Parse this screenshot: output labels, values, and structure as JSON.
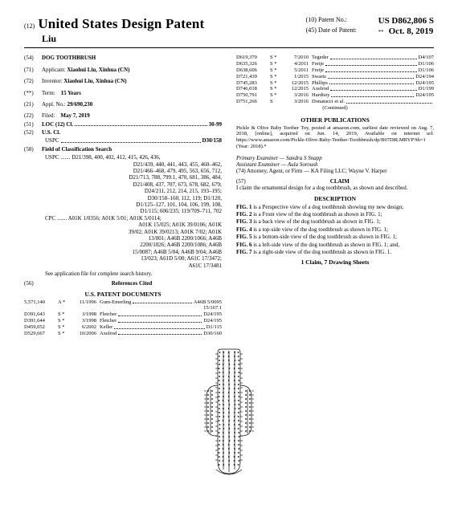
{
  "header": {
    "code12": "(12)",
    "title": "United States Design Patent",
    "surname": "Liu",
    "patno_label": "(10) Patent No.:",
    "patno": "US D862,806 S",
    "date_label": "(45) Date of Patent:",
    "date_star": "**",
    "date": "Oct. 8, 2019"
  },
  "left": {
    "f54": {
      "code": "(54)",
      "label": "DOG TOOTHBRUSH"
    },
    "f71": {
      "code": "(71)",
      "label": "Applicant:",
      "val": "Xiaohui Liu, Xinhua (CN)"
    },
    "f72": {
      "code": "(72)",
      "label": "Inventor:",
      "val": "Xiaohui Liu, Xinhua (CN)"
    },
    "term": {
      "code": "(**)",
      "label": "Term:",
      "val": "15 Years"
    },
    "f21": {
      "code": "(21)",
      "label": "Appl. No.:",
      "val": "29/690,230"
    },
    "f22": {
      "code": "(22)",
      "label": "Filed:",
      "val": "May 7, 2019"
    },
    "f51": {
      "code": "(51)",
      "label": "LOC (12) Cl.",
      "val": "30-99"
    },
    "f52": {
      "code": "(52)",
      "label": "U.S. Cl."
    },
    "uspc": {
      "label": "USPC",
      "val": "D30/158"
    },
    "f58": {
      "code": "(58)",
      "label": "Field of Classification Search"
    },
    "uspc_search": "USPC ....... D21/398, 400, 402, 412, 415, 426, 436,",
    "uspc_lines": [
      "D21/439, 440, 441, 443, 455, 460–462,",
      "D21/466–468, 479, 495, 563, 656, 712,",
      "D21/713, 788, 799.1, 470, 681, 386, 484,",
      "D21/408, 437, 707, 673, 678, 682, 679;",
      "D24/211, 212, 214, 215, 193–195;",
      "D30/158–160, 112, 119; D1/120,",
      "D1/125–127, 101, 104, 106, 199, 108,",
      "D1/115; 606/235; 119/709–711, 702"
    ],
    "cpc": "CPC ....... A01K 1/0356; A01K 5/01; A01K 5/0114;",
    "cpc_lines": [
      "A01K 15/025; A01K 39/0106; A01K",
      "39/02; A01K 39/0213; A01K 7/02; A01K",
      "13/001; A46B 2200/1066; A46B",
      "2200/1026; A46B 2200/1086; A46B",
      "15/0087; A46B 5/04; A46B 9/04; A46B",
      "13/023; A61D 5/00; A61C 17/3472;",
      "A61C 17/3481"
    ],
    "see_file": "See application file for complete search history.",
    "f56": {
      "code": "(56)",
      "label": "References Cited"
    },
    "us_docs": "U.S. PATENT DOCUMENTS",
    "refs": [
      {
        "no": "5,571,140",
        "t": "A *",
        "d": "11/1996",
        "n": "Gum-Emerling",
        "c": "A46B 5/0095",
        "c2": "15/167.1"
      },
      {
        "no": "D391,643",
        "t": "S *",
        "d": "3/1998",
        "n": "Fletcher",
        "c": "D24/195"
      },
      {
        "no": "D391,644",
        "t": "S *",
        "d": "3/1998",
        "n": "Fletcher",
        "c": "D24/195"
      },
      {
        "no": "D459,052",
        "t": "S *",
        "d": "6/2002",
        "n": "Keller",
        "c": "D1/115"
      },
      {
        "no": "D529,667",
        "t": "S *",
        "d": "10/2006",
        "n": "Axelrod",
        "c": "D30/160"
      }
    ]
  },
  "right": {
    "refs": [
      {
        "no": "D619,370",
        "t": "S *",
        "d": "7/2010",
        "n": "Tegeder",
        "c": "D4/107"
      },
      {
        "no": "D635,326",
        "t": "S *",
        "d": "4/2011",
        "n": "Freije",
        "c": "D1/106"
      },
      {
        "no": "D638,606",
        "t": "S *",
        "d": "5/2011",
        "n": "Freije",
        "c": "D1/106"
      },
      {
        "no": "D721,439",
        "t": "S *",
        "d": "1/2015",
        "n": "Swartz",
        "c": "D24/194"
      },
      {
        "no": "D745,283",
        "t": "S *",
        "d": "12/2015",
        "n": "Phillips",
        "c": "D24/195"
      },
      {
        "no": "D746,018",
        "t": "S *",
        "d": "12/2015",
        "n": "Axelrod",
        "c": "D1/199"
      },
      {
        "no": "D750,791",
        "t": "S *",
        "d": "3/2016",
        "n": "Hardisty",
        "c": "D24/195"
      },
      {
        "no": "D751,266",
        "t": "S",
        "d": "3/2016",
        "n": "Donatucci et al.",
        "c": ""
      }
    ],
    "continued": "(Continued)",
    "other_pub": "OTHER PUBLICATIONS",
    "other_text": "Pickle & Olive Baby Teether Toy, posted at amazon.com, earliest date reviewed on Aug. 7, 2018, [online], acquired on Jun. 14, 2019, Available on internet url: https://www.amazon.com/Pickle-Olive-Baby-Teether-Toothbrush/dp/B07D8LMRYP?th=1 (Year: 2018).*",
    "examiner": "Primary Examiner — Sandra S Snapp",
    "asst": "Assistant Examiner — Aula Soroush",
    "atty": "(74) Attorney, Agent, or Firm — KA Filing LLC; Wayne V. Harper",
    "claim_h": "CLAIM",
    "claim_code": "(57)",
    "claim": "I claim the ornamental design for a dog toothbrush, as shown and described.",
    "desc_h": "DESCRIPTION",
    "desc": [
      "FIG. 1 is a Perspective view of a dog toothbrush showing my new design;",
      "FIG. 2 is a Front view of the dog toothbrush as shown in FIG. 1;",
      "FIG. 3 is a back view of the dog toothbrush as shown in FIG. 1;",
      "FIG. 4 is a top-side view of the dog toothbrush as shown in FIG. 1;",
      "FIG. 5 is a bottom-side view of the dog toothbrush as shown in FIG. 1;",
      "FIG. 6 is a left-side view of the dog toothbrush as shown in FIG. 1; and,",
      "FIG. 7 is a right-side view of the dog toothbrush as shown in FIG. 1."
    ],
    "claimcount": "1 Claim, 7 Drawing Sheets"
  }
}
